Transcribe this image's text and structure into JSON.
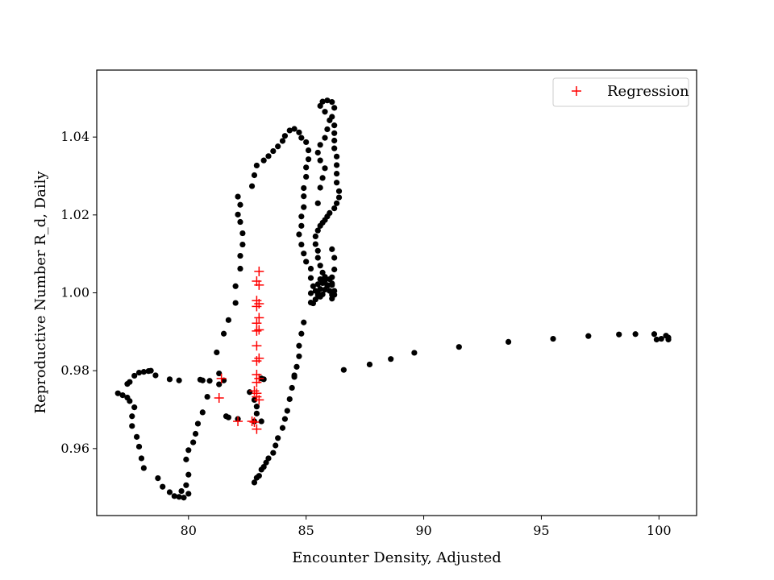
{
  "chart_data": {
    "type": "scatter",
    "title": "",
    "xlabel": "Encounter Density, Adjusted",
    "ylabel": "Reproductive Number R_d, Daily",
    "xlim": [
      76.1,
      101.6
    ],
    "ylim": [
      0.9428,
      1.0572
    ],
    "xticks": [
      80,
      85,
      90,
      95,
      100
    ],
    "xtick_labels": [
      "80",
      "85",
      "90",
      "95",
      "100"
    ],
    "yticks": [
      0.96,
      0.98,
      1.0,
      1.02,
      1.04
    ],
    "ytick_labels": [
      "0.96",
      "0.98",
      "1.00",
      "1.02",
      "1.04"
    ],
    "grid": false,
    "legend": {
      "position": "top-right",
      "entries": [
        "Regression"
      ]
    },
    "colors": {
      "observed": "#000000",
      "regression": "#ff0000"
    },
    "series": [
      {
        "marker": "dot",
        "color": "#000000",
        "points": [
          [
            77.0,
            0.9742
          ],
          [
            77.2,
            0.9737
          ],
          [
            77.4,
            0.9731
          ],
          [
            77.5,
            0.9722
          ],
          [
            77.7,
            0.9706
          ],
          [
            77.6,
            0.9683
          ],
          [
            77.6,
            0.9658
          ],
          [
            77.8,
            0.963
          ],
          [
            77.9,
            0.9605
          ],
          [
            78.0,
            0.9575
          ],
          [
            78.1,
            0.955
          ],
          [
            78.7,
            0.9524
          ],
          [
            78.9,
            0.9502
          ],
          [
            79.2,
            0.9488
          ],
          [
            79.4,
            0.9478
          ],
          [
            79.6,
            0.9476
          ],
          [
            79.7,
            0.9491
          ],
          [
            79.8,
            0.9474
          ],
          [
            80.0,
            0.9484
          ],
          [
            79.9,
            0.9506
          ],
          [
            80.0,
            0.9533
          ],
          [
            79.9,
            0.9572
          ],
          [
            80.0,
            0.9596
          ],
          [
            80.2,
            0.9616
          ],
          [
            80.3,
            0.9638
          ],
          [
            80.4,
            0.9664
          ],
          [
            80.6,
            0.9693
          ],
          [
            80.8,
            0.9733
          ],
          [
            80.9,
            0.9774
          ],
          [
            81.2,
            0.9847
          ],
          [
            81.5,
            0.9895
          ],
          [
            81.7,
            0.993
          ],
          [
            82.0,
            0.9974
          ],
          [
            82.0,
            1.0017
          ],
          [
            82.2,
            1.0062
          ],
          [
            82.2,
            1.0095
          ],
          [
            82.3,
            1.0124
          ],
          [
            82.3,
            1.0153
          ],
          [
            82.2,
            1.0182
          ],
          [
            82.1,
            1.0201
          ],
          [
            82.2,
            1.0226
          ],
          [
            82.1,
            1.0247
          ],
          [
            82.7,
            1.0274
          ],
          [
            82.8,
            1.0302
          ],
          [
            82.9,
            1.0327
          ],
          [
            83.2,
            1.034
          ],
          [
            83.4,
            1.0351
          ],
          [
            83.6,
            1.0364
          ],
          [
            83.8,
            1.0376
          ],
          [
            84.0,
            1.039
          ],
          [
            84.1,
            1.0403
          ],
          [
            84.3,
            1.0417
          ],
          [
            84.5,
            1.0421
          ],
          [
            84.7,
            1.0412
          ],
          [
            84.8,
            1.0398
          ],
          [
            85.0,
            1.0387
          ],
          [
            85.1,
            1.0366
          ],
          [
            85.1,
            1.0343
          ],
          [
            85.0,
            1.0322
          ],
          [
            85.0,
            1.0298
          ],
          [
            84.9,
            1.0269
          ],
          [
            84.9,
            1.0248
          ],
          [
            84.9,
            1.022
          ],
          [
            84.8,
            1.0196
          ],
          [
            84.8,
            1.0172
          ],
          [
            84.7,
            1.015
          ],
          [
            84.8,
            1.0124
          ],
          [
            84.9,
            1.0101
          ],
          [
            85.0,
            1.008
          ],
          [
            85.2,
            1.0062
          ],
          [
            85.2,
            1.0038
          ],
          [
            85.3,
            1.0017
          ],
          [
            85.2,
            0.9999
          ],
          [
            85.4,
            0.9983
          ],
          [
            85.3,
            0.9973
          ],
          [
            85.2,
            0.9975
          ],
          [
            84.9,
            0.9924
          ],
          [
            84.8,
            0.9895
          ],
          [
            84.7,
            0.9864
          ],
          [
            84.7,
            0.9837
          ],
          [
            84.6,
            0.981
          ],
          [
            84.5,
            0.9784
          ],
          [
            84.4,
            0.9756
          ],
          [
            84.3,
            0.9727
          ],
          [
            84.2,
            0.9697
          ],
          [
            84.1,
            0.9676
          ],
          [
            84.0,
            0.9653
          ],
          [
            83.8,
            0.9627
          ],
          [
            83.7,
            0.9608
          ],
          [
            83.6,
            0.9589
          ],
          [
            83.4,
            0.9575
          ],
          [
            83.3,
            0.9564
          ],
          [
            83.2,
            0.9553
          ],
          [
            83.1,
            0.9546
          ],
          [
            83.0,
            0.953
          ],
          [
            82.9,
            0.9525
          ],
          [
            82.8,
            0.9513
          ],
          [
            82.1,
            0.9676
          ],
          [
            81.7,
            0.968
          ],
          [
            81.6,
            0.9683
          ],
          [
            81.5,
            0.9775
          ],
          [
            81.3,
            0.9765
          ],
          [
            81.3,
            0.9793
          ],
          [
            80.6,
            0.9775
          ],
          [
            80.5,
            0.9777
          ],
          [
            79.6,
            0.9775
          ],
          [
            79.2,
            0.9778
          ],
          [
            78.6,
            0.9788
          ],
          [
            78.4,
            0.98
          ],
          [
            78.3,
            0.9799
          ],
          [
            78.1,
            0.9797
          ],
          [
            77.9,
            0.9795
          ],
          [
            77.7,
            0.9787
          ],
          [
            77.5,
            0.9771
          ],
          [
            77.4,
            0.9766
          ],
          [
            85.5,
            1.036
          ],
          [
            85.6,
            1.038
          ],
          [
            85.8,
            1.0398
          ],
          [
            85.9,
            1.042
          ],
          [
            86.0,
            1.0443
          ],
          [
            85.8,
            1.0465
          ],
          [
            85.6,
            1.048
          ],
          [
            85.7,
            1.0491
          ],
          [
            85.9,
            1.0494
          ],
          [
            86.1,
            1.049
          ],
          [
            86.2,
            1.0475
          ],
          [
            86.1,
            1.0452
          ],
          [
            86.2,
            1.043
          ],
          [
            86.2,
            1.041
          ],
          [
            86.2,
            1.0391
          ],
          [
            86.2,
            1.0371
          ],
          [
            86.3,
            1.035
          ],
          [
            86.3,
            1.0328
          ],
          [
            86.3,
            1.0306
          ],
          [
            86.3,
            1.0283
          ],
          [
            86.4,
            1.0261
          ],
          [
            86.4,
            1.0245
          ],
          [
            86.3,
            1.023
          ],
          [
            86.2,
            1.0217
          ],
          [
            86.0,
            1.0205
          ],
          [
            85.9,
            1.0196
          ],
          [
            85.8,
            1.0187
          ],
          [
            85.7,
            1.018
          ],
          [
            85.6,
            1.0172
          ],
          [
            85.5,
            1.016
          ],
          [
            85.4,
            1.0145
          ],
          [
            85.4,
            1.0125
          ],
          [
            85.5,
            1.0108
          ],
          [
            85.5,
            1.009
          ],
          [
            85.6,
            1.007
          ],
          [
            85.7,
            1.0052
          ],
          [
            85.8,
            1.0035
          ],
          [
            85.9,
            1.0018
          ],
          [
            86.0,
            1.0005
          ],
          [
            86.1,
            0.9995
          ],
          [
            86.1,
            0.9985
          ],
          [
            86.2,
            0.9995
          ],
          [
            86.2,
            1.0005
          ],
          [
            86.1,
            1.002
          ],
          [
            86.1,
            1.004
          ],
          [
            86.2,
            1.006
          ],
          [
            86.2,
            1.009
          ],
          [
            86.1,
            1.0112
          ],
          [
            85.5,
            1.0
          ],
          [
            85.6,
            1.001
          ],
          [
            85.7,
            1.0025
          ],
          [
            85.8,
            1.0032
          ],
          [
            85.9,
            1.002
          ],
          [
            85.8,
            1.0008
          ],
          [
            85.7,
            0.9996
          ],
          [
            85.6,
            0.999
          ],
          [
            85.5,
            0.9995
          ],
          [
            85.4,
            1.0005
          ],
          [
            85.5,
            1.0022
          ],
          [
            85.6,
            1.0035
          ],
          [
            85.8,
            1.0041
          ],
          [
            86.0,
            1.0035
          ],
          [
            86.1,
            1.0024
          ],
          [
            85.5,
            1.023
          ],
          [
            85.6,
            1.027
          ],
          [
            85.7,
            1.0295
          ],
          [
            85.8,
            1.032
          ],
          [
            85.6,
            1.034
          ],
          [
            84.5,
            0.9788
          ],
          [
            86.6,
            0.9802
          ],
          [
            87.7,
            0.9816
          ],
          [
            88.6,
            0.983
          ],
          [
            89.6,
            0.9846
          ],
          [
            91.5,
            0.9861
          ],
          [
            93.6,
            0.9874
          ],
          [
            95.5,
            0.9882
          ],
          [
            97.0,
            0.9889
          ],
          [
            98.3,
            0.9893
          ],
          [
            99.0,
            0.9894
          ],
          [
            99.8,
            0.9894
          ],
          [
            99.9,
            0.988
          ],
          [
            100.1,
            0.9882
          ],
          [
            100.3,
            0.989
          ],
          [
            100.4,
            0.9885
          ],
          [
            100.4,
            0.988
          ],
          [
            82.6,
            0.9745
          ],
          [
            82.8,
            0.9725
          ],
          [
            82.9,
            0.9708
          ],
          [
            82.9,
            0.969
          ],
          [
            82.8,
            0.967
          ],
          [
            83.1,
            0.967
          ],
          [
            83.1,
            0.978
          ],
          [
            83.2,
            0.9778
          ]
        ]
      },
      {
        "name": "Regression",
        "marker": "plus",
        "color": "#ff0000",
        "points": [
          [
            81.4,
            0.978
          ],
          [
            81.3,
            0.973
          ],
          [
            82.1,
            0.967
          ],
          [
            82.7,
            0.967
          ],
          [
            82.8,
            0.9668
          ],
          [
            82.9,
            0.965
          ],
          [
            82.8,
            0.9748
          ],
          [
            82.9,
            0.9742
          ],
          [
            82.9,
            0.9733
          ],
          [
            83.0,
            0.9725
          ],
          [
            82.9,
            0.977
          ],
          [
            83.0,
            0.978
          ],
          [
            82.9,
            0.979
          ],
          [
            82.9,
            0.9825
          ],
          [
            83.0,
            0.9832
          ],
          [
            82.9,
            0.9864
          ],
          [
            82.9,
            0.9902
          ],
          [
            83.0,
            0.9905
          ],
          [
            82.9,
            0.9922
          ],
          [
            83.0,
            0.9936
          ],
          [
            82.9,
            0.9965
          ],
          [
            83.0,
            0.9972
          ],
          [
            82.9,
            0.998
          ],
          [
            83.0,
            1.002
          ],
          [
            82.9,
            1.003
          ],
          [
            83.0,
            1.0055
          ]
        ]
      }
    ]
  }
}
